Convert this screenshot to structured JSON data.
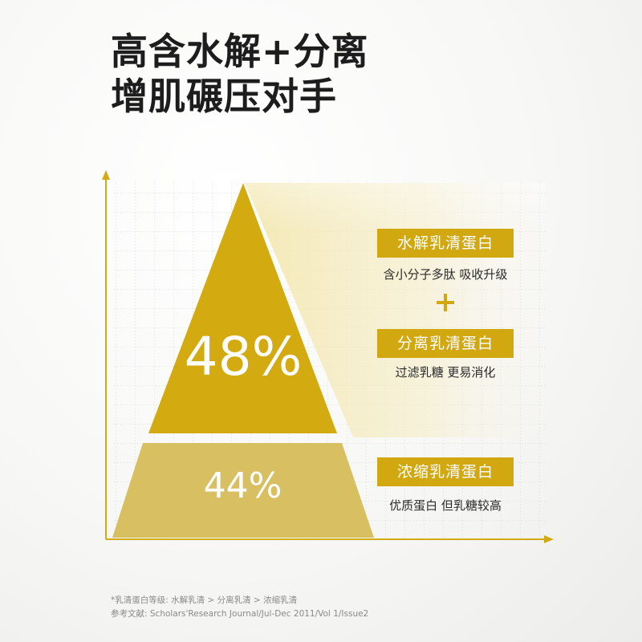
{
  "headline": {
    "line1": "高含水解+分离",
    "line2": "增肌碾压对手"
  },
  "tiers": [
    {
      "percent": "48%",
      "name": "水解乳清蛋白",
      "desc": "含小分子多肽 吸收升级"
    },
    {
      "percent": "",
      "name": "分离乳清蛋白",
      "desc": "过滤乳糖 更易消化"
    },
    {
      "percent": "44%",
      "name": "浓缩乳清蛋白",
      "desc": "优质蛋白 但乳糖较高"
    }
  ],
  "plus_symbol": "+",
  "footnotes": {
    "line1": "*乳清蛋白等级: 水解乳清 > 分离乳清 > 浓缩乳清",
    "line2": "参考文献: Scholars'Research Journal/Jul-Dec 2011/Vol 1/Issue2"
  },
  "colors": {
    "gold": "#d1a810",
    "gold_light": "#d8c060",
    "text_dark": "#1d1d1d",
    "footnote_gray": "#8a8a8a"
  }
}
